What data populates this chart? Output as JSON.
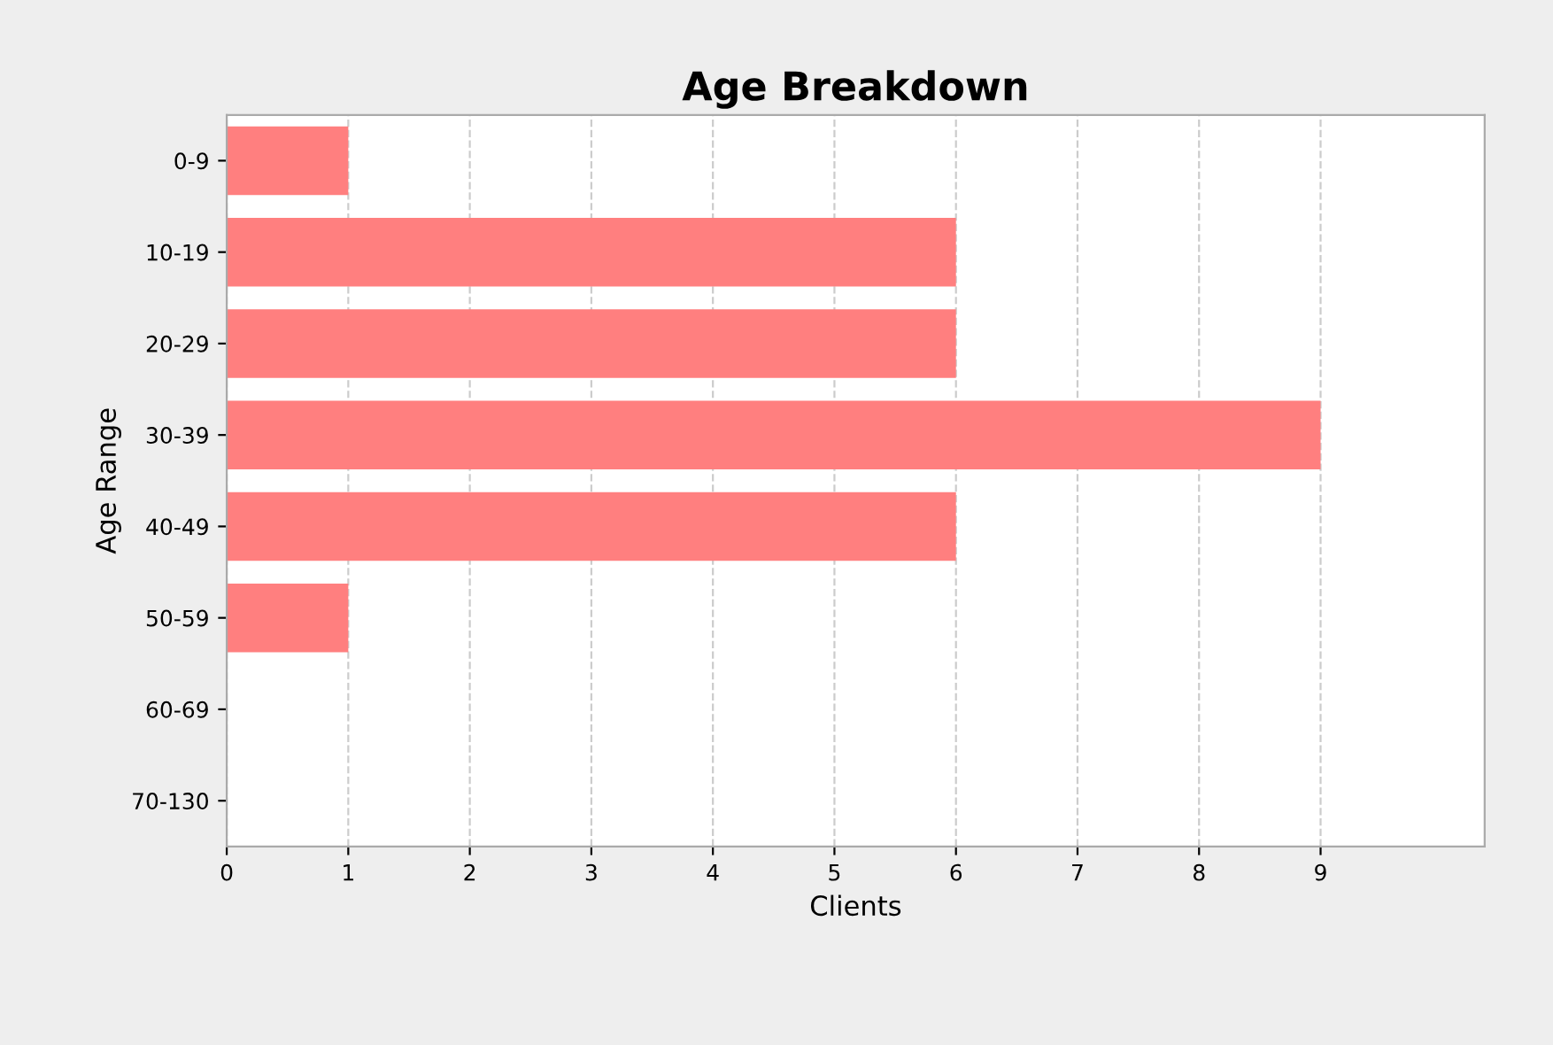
{
  "chart_data": {
    "type": "bar",
    "orientation": "horizontal",
    "title": "Age Breakdown",
    "xlabel": "Clients",
    "ylabel": "Age Range",
    "categories": [
      "0-9",
      "10-19",
      "20-29",
      "30-39",
      "40-49",
      "50-59",
      "60-69",
      "70-130"
    ],
    "series": [
      {
        "color": "#ff7f7f",
        "values": [
          1,
          6,
          6,
          9,
          6,
          1,
          0,
          0
        ]
      }
    ],
    "xlim": [
      0,
      10.35
    ],
    "xticks": [
      0,
      1,
      2,
      3,
      4,
      5,
      6,
      7,
      8,
      9
    ],
    "grid": "x"
  }
}
